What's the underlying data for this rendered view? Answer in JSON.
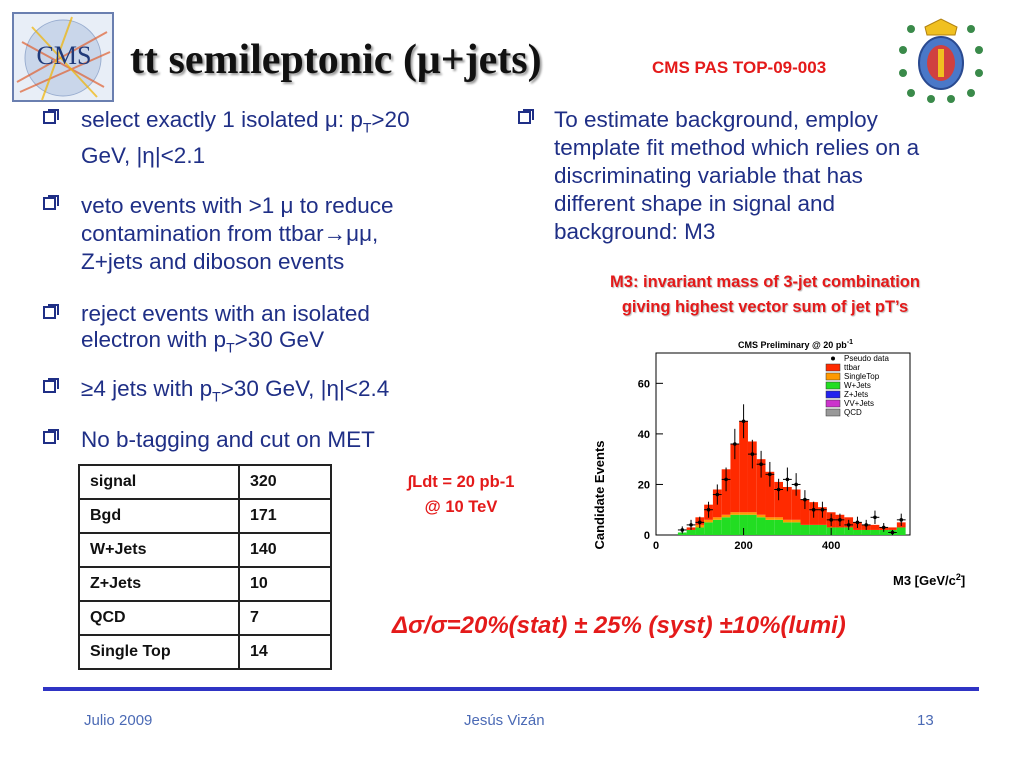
{
  "slide": {
    "title": "tt semileptonic (μ+jets)",
    "reference": "CMS PAS TOP-09-003"
  },
  "left_bullets": [
    {
      "line1": "select exactly 1 isolated μ: p",
      "sub": "T",
      "line1b": ">20",
      "line2": "GeV, |η|<2.1"
    },
    {
      "line1": " veto events with >1 μ to reduce",
      "line2": "contamination from ttbar→μμ,",
      "line3": "Z+jets and diboson events"
    },
    {
      "line1": " reject events with an isolated",
      "line2a": "electron with p",
      "sub": "T",
      "line2b": ">30 GeV"
    },
    {
      "a": " ≥4 jets with p",
      "sub": "T",
      "b": ">30 GeV, |η|<2.4"
    },
    {
      "line1": " No b-tagging and cut on MET"
    }
  ],
  "right_bullet": {
    "lines": [
      "To estimate background, employ",
      "template fit method which relies on a",
      "discriminating variable that has",
      "different shape in signal and",
      "background: M3"
    ]
  },
  "m3_note": {
    "line1": "M3: invariant mass of 3-jet combination",
    "line2": "giving highest vector sum of jet pT’s"
  },
  "event_table": {
    "rows": [
      {
        "name": "signal",
        "value": "320"
      },
      {
        "name": "Bgd",
        "value": "171"
      },
      {
        "name": "W+Jets",
        "value": "140"
      },
      {
        "name": "Z+Jets",
        "value": "10"
      },
      {
        "name": "QCD",
        "value": "7"
      },
      {
        "name": "Single Top",
        "value": "14"
      }
    ]
  },
  "lumi_note": {
    "line1": "∫Ldt  = 20 pb-1",
    "line2": "@ 10 TeV"
  },
  "result": "Δσ/σ=20%(stat) ± 25% (syst) ±10%(lumi)",
  "footer": {
    "date": "Julio 2009",
    "author": "Jesús Vizán",
    "page": "13"
  },
  "chart_data": {
    "type": "bar",
    "title": "CMS Preliminary @ 20 pb",
    "title_sup": "-1",
    "xlabel": "M3 [GeV/c",
    "xlabel_sup": "2",
    "xlabel_end": "]",
    "ylabel": "Candidate Events",
    "xlim": [
      0,
      580
    ],
    "ylim": [
      0,
      72
    ],
    "xticks": [
      0,
      200,
      400
    ],
    "yticks": [
      0,
      20,
      40,
      60
    ],
    "legend": [
      "Pseudo data",
      "ttbar",
      "SingleTop",
      "W+Jets",
      "Z+Jets",
      "VV+Jets",
      "QCD"
    ],
    "legend_position": "top-right",
    "colors": {
      "ttbar": "#ff2a00",
      "SingleTop": "#ff9900",
      "WJets": "#22dd22",
      "ZJets": "#2222ee",
      "VVJets": "#cc33cc",
      "QCD": "#999999"
    },
    "bins": [
      60,
      80,
      100,
      120,
      140,
      160,
      180,
      200,
      220,
      240,
      260,
      280,
      300,
      320,
      340,
      360,
      380,
      400,
      420,
      440,
      460,
      480,
      500,
      520,
      540,
      560
    ],
    "series": [
      {
        "name": "QCD",
        "values": [
          0,
          0,
          0,
          0,
          0,
          0,
          0,
          0,
          0,
          0,
          0,
          0,
          0,
          0,
          0,
          0,
          0,
          0,
          0,
          0,
          0,
          0,
          0,
          0,
          0,
          0
        ]
      },
      {
        "name": "W+Jets",
        "values": [
          1,
          2,
          3,
          5,
          6,
          7,
          8,
          8,
          8,
          7,
          6,
          6,
          5,
          5,
          4,
          4,
          4,
          3,
          3,
          3,
          2,
          2,
          2,
          2,
          2,
          3
        ]
      },
      {
        "name": "SingleTop",
        "values": [
          0,
          0,
          1,
          1,
          1,
          1,
          1,
          1,
          1,
          1,
          1,
          1,
          1,
          1,
          0,
          0,
          0,
          0,
          0,
          0,
          0,
          0,
          0,
          0,
          0,
          0
        ]
      },
      {
        "name": "ttbar",
        "values": [
          0,
          1,
          3,
          6,
          11,
          18,
          27,
          36,
          28,
          22,
          18,
          14,
          13,
          12,
          10,
          9,
          7,
          6,
          5,
          4,
          3,
          2,
          2,
          1,
          1,
          2
        ]
      },
      {
        "name": "Pseudo data",
        "values": [
          2,
          4,
          5,
          10,
          16,
          22,
          36,
          45,
          32,
          28,
          24,
          18,
          22,
          20,
          14,
          10,
          10,
          6,
          6,
          4,
          5,
          4,
          7,
          3,
          1,
          6
        ]
      }
    ]
  }
}
